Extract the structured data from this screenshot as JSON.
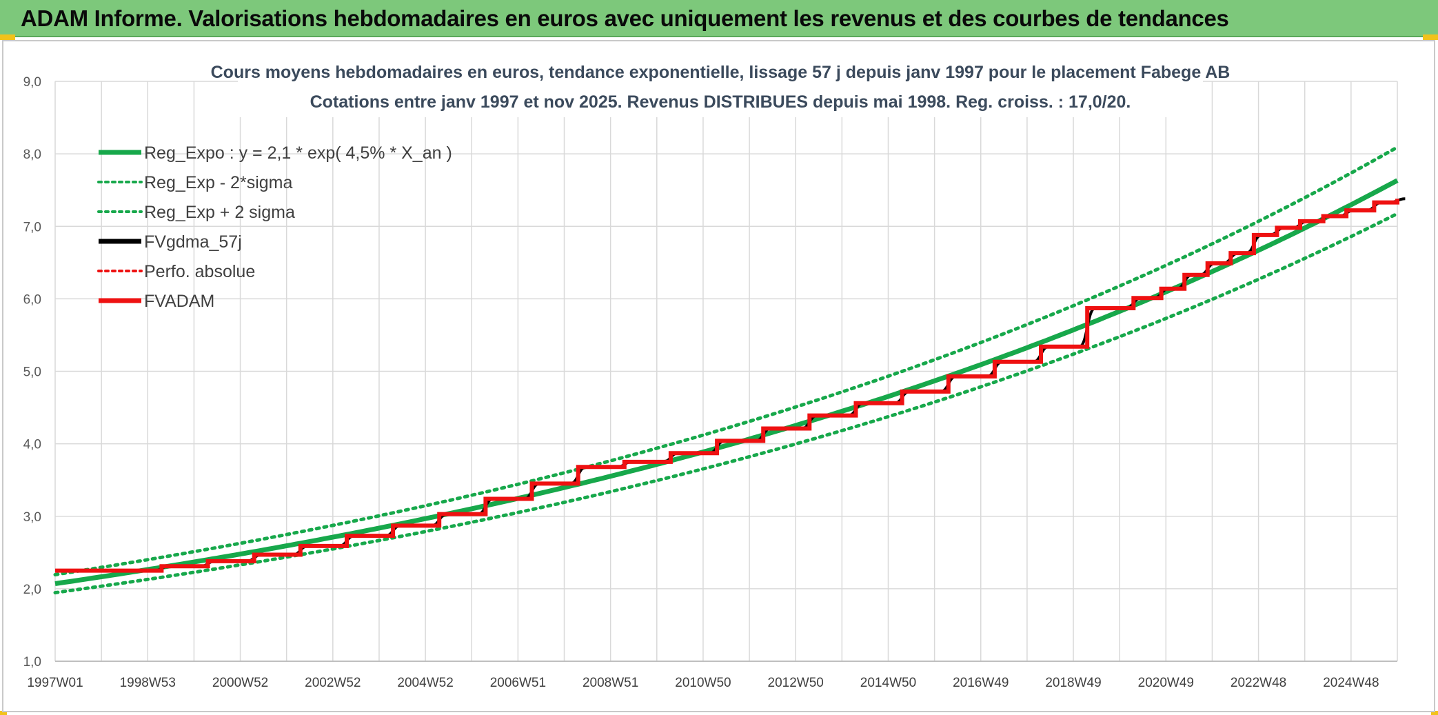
{
  "header": {
    "title": "ADAM Informe. Valorisations hebdomadaires en euros avec uniquement les revenus et des courbes de tendances"
  },
  "colors": {
    "banner": "#7dc87b",
    "reg_green": "#17a84b",
    "fvadam_red": "#ee1111",
    "fvgdma_black": "#000000",
    "grid": "#d9d9d9",
    "title_text": "#3b4a5c"
  },
  "chart_data": {
    "type": "line",
    "title": "Cours moyens hebdomadaires en euros, tendance exponentielle, lissage 57 j depuis janv 1997 pour le placement Fabege AB",
    "subtitle": "Cotations entre janv 1997 et nov 2025. Revenus DISTRIBUES depuis mai 1998. Reg. croiss. : 17,0/20.",
    "xlabel": "",
    "ylabel": "",
    "ylim": [
      1.0,
      9.0
    ],
    "xlim": [
      1997.0,
      2026.0
    ],
    "y_ticks": [
      "1,0",
      "2,0",
      "3,0",
      "4,0",
      "5,0",
      "6,0",
      "7,0",
      "8,0",
      "9,0"
    ],
    "x_tick_labels": [
      "1997W01",
      "1998W53",
      "2000W52",
      "2002W52",
      "2004W52",
      "2006W51",
      "2008W51",
      "2010W50",
      "2012W50",
      "2014W50",
      "2016W49",
      "2018W49",
      "2020W49",
      "2022W48",
      "2024W48"
    ],
    "grid": true,
    "legend_position": "top-left",
    "legend": [
      {
        "label": "Reg_Expo : y = 2,1 * exp( 4,5% *  X_an )",
        "style": "solid",
        "color": "#17a84b"
      },
      {
        "label": "Reg_Exp - 2*sigma",
        "style": "dotted",
        "color": "#17a84b"
      },
      {
        "label": "Reg_Exp + 2 sigma",
        "style": "dotted",
        "color": "#17a84b"
      },
      {
        "label": "FVgdma_57j",
        "style": "solid",
        "color": "#000000"
      },
      {
        "label": "Perfo. absolue",
        "style": "dotted",
        "color": "#ee1111"
      },
      {
        "label": "FVADAM",
        "style": "solid",
        "color": "#ee1111"
      }
    ],
    "regression": {
      "a": 2.07,
      "rate": 0.045,
      "x0": 1997.0,
      "sigma_factor_low": 0.94,
      "sigma_factor_high": 1.06
    },
    "steps": [
      {
        "x": 1997.0,
        "y": 2.25
      },
      {
        "x": 1999.3,
        "y": 2.31
      },
      {
        "x": 2000.3,
        "y": 2.38
      },
      {
        "x": 2001.3,
        "y": 2.47
      },
      {
        "x": 2002.3,
        "y": 2.59
      },
      {
        "x": 2003.3,
        "y": 2.73
      },
      {
        "x": 2004.3,
        "y": 2.87
      },
      {
        "x": 2005.3,
        "y": 3.03
      },
      {
        "x": 2006.3,
        "y": 3.24
      },
      {
        "x": 2007.3,
        "y": 3.45
      },
      {
        "x": 2008.3,
        "y": 3.68
      },
      {
        "x": 2009.3,
        "y": 3.75
      },
      {
        "x": 2010.3,
        "y": 3.87
      },
      {
        "x": 2011.3,
        "y": 4.04
      },
      {
        "x": 2012.3,
        "y": 4.21
      },
      {
        "x": 2013.3,
        "y": 4.39
      },
      {
        "x": 2014.3,
        "y": 4.56
      },
      {
        "x": 2015.3,
        "y": 4.72
      },
      {
        "x": 2016.3,
        "y": 4.93
      },
      {
        "x": 2017.3,
        "y": 5.13
      },
      {
        "x": 2018.3,
        "y": 5.34
      },
      {
        "x": 2019.3,
        "y": 5.87
      },
      {
        "x": 2020.3,
        "y": 6.01
      },
      {
        "x": 2020.9,
        "y": 6.14
      },
      {
        "x": 2021.4,
        "y": 6.33
      },
      {
        "x": 2021.9,
        "y": 6.49
      },
      {
        "x": 2022.4,
        "y": 6.63
      },
      {
        "x": 2022.9,
        "y": 6.88
      },
      {
        "x": 2023.4,
        "y": 6.98
      },
      {
        "x": 2023.9,
        "y": 7.07
      },
      {
        "x": 2024.4,
        "y": 7.14
      },
      {
        "x": 2024.9,
        "y": 7.22
      },
      {
        "x": 2025.5,
        "y": 7.33
      },
      {
        "x": 2026.0,
        "y": 7.38
      }
    ]
  }
}
